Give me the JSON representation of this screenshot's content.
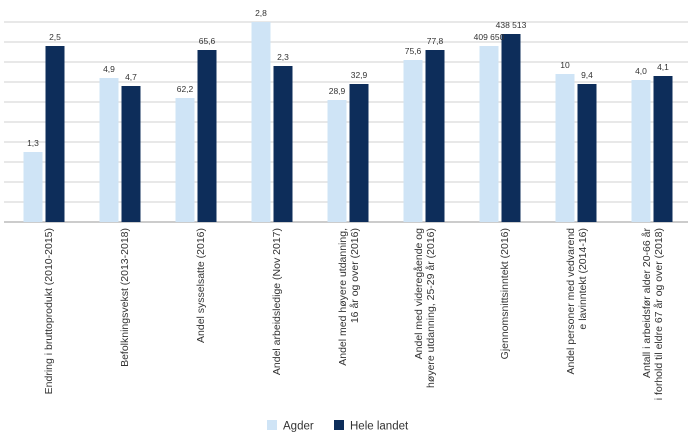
{
  "chart_data": {
    "type": "bar",
    "categories": [
      [
        "Endring i bruttoprodukt (2010-2015)"
      ],
      [
        "Befolkningsvekst (2013-2018)"
      ],
      [
        "Andel sysselsatte (2016)"
      ],
      [
        "Andel arbeidsledige (Nov 2017)"
      ],
      [
        "Andel med høyere utdanning,",
        "16 år og over (2016)"
      ],
      [
        "Andel med videregående og",
        "høyere utdanning, 25-29 år (2016)"
      ],
      [
        "Gjennomsnittsinntekt (2016)"
      ],
      [
        "Andel personer med vedvarend",
        "e lavinntekt (2014-16)"
      ],
      [
        "Antall i arbeidsfør alder 20-66 år",
        "i forhold til eldre 67 år og over (2018)"
      ]
    ],
    "series": [
      {
        "name": "Agder",
        "color": "#cfe4f6",
        "labels": [
          "1,3",
          "4,9",
          "62,2",
          "2,8",
          "28,9",
          "75,6",
          "409 650",
          "10",
          "4,0"
        ],
        "relative_height": [
          0.35,
          0.72,
          0.62,
          1.0,
          0.61,
          0.81,
          0.88,
          0.74,
          0.71
        ]
      },
      {
        "name": "Hele landet",
        "color": "#0d2d5a",
        "labels": [
          "2,5",
          "4,7",
          "65,6",
          "2,3",
          "32,9",
          "77,8",
          "438 513",
          "9,4",
          "4,1"
        ],
        "relative_height": [
          0.88,
          0.68,
          0.86,
          0.78,
          0.69,
          0.86,
          0.94,
          0.69,
          0.73
        ]
      }
    ],
    "gridlines": 10,
    "y_axis_labels_shown": false,
    "legend_position": "bottom-center",
    "grid": true
  },
  "legend": {
    "agder": "Agder",
    "hele_landet": "Hele landet"
  }
}
